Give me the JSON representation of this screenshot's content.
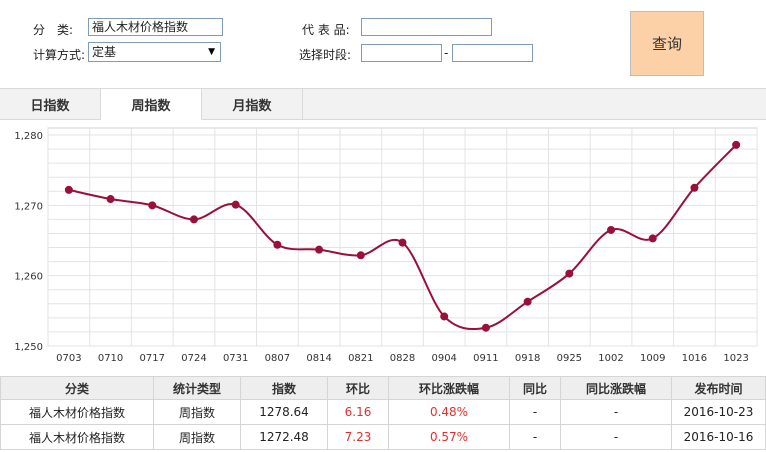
{
  "filters": {
    "category_label": "分　类:",
    "category_value": "福人木材价格指数",
    "method_label": "计算方式:",
    "method_value": "定基",
    "product_label": "代 表 品:",
    "product_value": "",
    "period_label": "选择时段:",
    "period_start": "",
    "period_sep": "-",
    "period_end": ""
  },
  "query_button": "查询",
  "tabs": [
    {
      "label": "日指数",
      "active": false
    },
    {
      "label": "周指数",
      "active": true
    },
    {
      "label": "月指数",
      "active": false
    }
  ],
  "colors": {
    "line": "#99103a",
    "query_bg": "#fcd1a7"
  },
  "chart_data": {
    "type": "line",
    "categories": [
      "0703",
      "0710",
      "0717",
      "0724",
      "0731",
      "0807",
      "0814",
      "0821",
      "0828",
      "0904",
      "0911",
      "0918",
      "0925",
      "1002",
      "1009",
      "1016",
      "1023"
    ],
    "series": [
      {
        "values": [
          1272.2,
          1270.9,
          1270.0,
          1268.0,
          1270.1,
          1264.4,
          1263.7,
          1262.9,
          1264.7,
          1254.2,
          1252.6,
          1256.3,
          1260.3,
          1266.5,
          1265.3,
          1272.5,
          1278.6
        ]
      }
    ],
    "ylim": [
      1250,
      1281
    ],
    "yticks": [
      1250,
      1260,
      1270,
      1280
    ],
    "ytick_labels": [
      "1,250",
      "1,260",
      "1,270",
      "1,280"
    ],
    "grid": true
  },
  "table": {
    "headers": [
      "分类",
      "统计类型",
      "指数",
      "环比",
      "环比涨跌幅",
      "同比",
      "同比涨跌幅",
      "发布时间"
    ],
    "rows": [
      [
        "福人木材价格指数",
        "周指数",
        "1278.64",
        "6.16",
        "0.48%",
        "-",
        "-",
        "2016-10-23"
      ],
      [
        "福人木材价格指数",
        "周指数",
        "1272.48",
        "7.23",
        "0.57%",
        "-",
        "-",
        "2016-10-16"
      ]
    ]
  }
}
